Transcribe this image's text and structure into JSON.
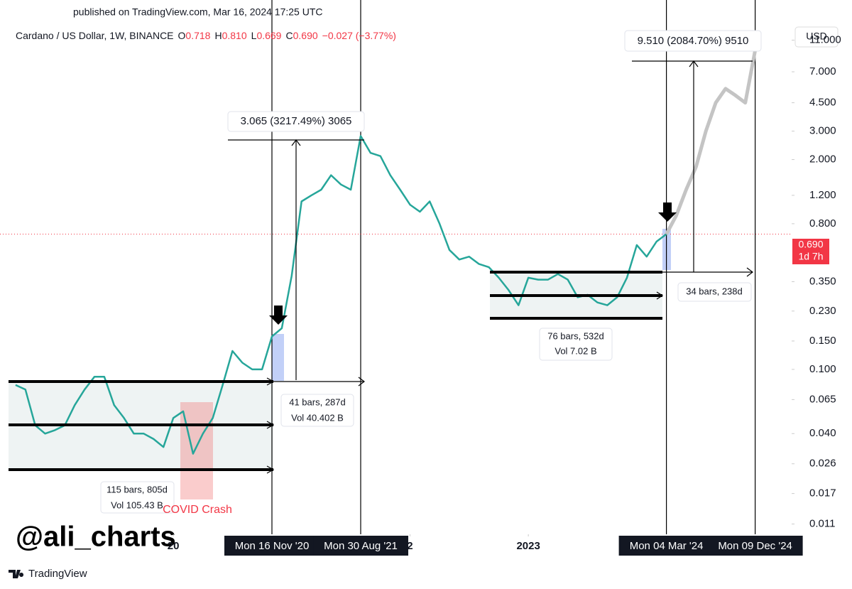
{
  "chart_data": {
    "type": "line",
    "published": "published on TradingView.com, Mar 16, 2024 17:25 UTC",
    "symbol": "Cardano / US Dollar, 1W, BINANCE",
    "ohlc": [
      {
        "key": "O",
        "value": 0.718,
        "label": "0.718"
      },
      {
        "key": "H",
        "value": 0.81,
        "label": "0.810"
      },
      {
        "key": "L",
        "value": 0.669,
        "label": "0.669"
      },
      {
        "key": "C",
        "value": 0.69,
        "label": "0.690"
      }
    ],
    "change": "−0.027 (−3.77%)",
    "currency": "USD",
    "log_scale": true,
    "x": [
      "2018-09",
      "2018-10",
      "2018-11",
      "2018-12",
      "2019-01",
      "2019-02",
      "2019-03",
      "2019-04",
      "2019-05",
      "2019-06",
      "2019-07",
      "2019-08",
      "2019-09",
      "2019-10",
      "2019-11",
      "2019-12",
      "2020-01",
      "2020-02",
      "2020-03",
      "2020-04",
      "2020-05",
      "2020-06",
      "2020-07",
      "2020-08",
      "2020-09",
      "2020-10",
      "2020-11",
      "2020-12",
      "2021-01",
      "2021-02",
      "2021-03",
      "2021-04",
      "2021-05",
      "2021-06",
      "2021-07",
      "2021-08",
      "2021-09",
      "2021-10",
      "2021-11",
      "2021-12",
      "2022-01",
      "2022-02",
      "2022-03",
      "2022-04",
      "2022-05",
      "2022-06",
      "2022-07",
      "2022-08",
      "2022-09",
      "2022-10",
      "2022-11",
      "2022-12",
      "2023-01",
      "2023-02",
      "2023-03",
      "2023-04",
      "2023-05",
      "2023-06",
      "2023-07",
      "2023-08",
      "2023-09",
      "2023-10",
      "2023-11",
      "2023-12",
      "2024-01",
      "2024-02",
      "2024-03",
      "2024-04",
      "2024-05",
      "2024-06",
      "2024-07",
      "2024-08",
      "2024-09",
      "2024-10",
      "2024-11",
      "2024-12"
    ],
    "series": [
      {
        "color": "#26a69a",
        "values": [
          0.08,
          0.075,
          0.045,
          0.04,
          0.042,
          0.045,
          0.06,
          0.075,
          0.09,
          0.09,
          0.06,
          0.05,
          0.04,
          0.04,
          0.037,
          0.033,
          0.05,
          0.055,
          0.03,
          0.04,
          0.05,
          0.08,
          0.13,
          0.11,
          0.1,
          0.1,
          0.16,
          0.18,
          0.38,
          1.1,
          1.2,
          1.3,
          1.6,
          1.4,
          1.3,
          2.8,
          2.2,
          2.1,
          1.6,
          1.3,
          1.05,
          0.95,
          1.1,
          0.8,
          0.55,
          0.48,
          0.5,
          0.45,
          0.43,
          0.37,
          0.31,
          0.25,
          0.37,
          0.36,
          0.36,
          0.39,
          0.36,
          0.28,
          0.29,
          0.26,
          0.25,
          0.28,
          0.37,
          0.59,
          0.5,
          0.62,
          0.69,
          null,
          null,
          null,
          null,
          null,
          null,
          null,
          null,
          null
        ]
      },
      {
        "color": "#c4c4c4",
        "values": [
          null,
          null,
          null,
          null,
          null,
          null,
          null,
          null,
          null,
          null,
          null,
          null,
          null,
          null,
          null,
          null,
          null,
          null,
          null,
          null,
          null,
          null,
          null,
          null,
          null,
          null,
          null,
          null,
          null,
          null,
          null,
          null,
          null,
          null,
          null,
          null,
          null,
          null,
          null,
          null,
          null,
          null,
          null,
          null,
          null,
          null,
          null,
          null,
          null,
          null,
          null,
          null,
          null,
          null,
          null,
          null,
          null,
          null,
          null,
          null,
          null,
          null,
          null,
          null,
          null,
          null,
          0.69,
          0.9,
          1.3,
          1.8,
          3.0,
          4.5,
          5.5,
          5.0,
          4.5,
          9.5
        ]
      }
    ],
    "ylim": [
      0.0095,
      13
    ],
    "yticks": [
      {
        "value": 11,
        "label": "11.000"
      },
      {
        "value": 7,
        "label": "7.000"
      },
      {
        "value": 4.5,
        "label": "4.500"
      },
      {
        "value": 3,
        "label": "3.000"
      },
      {
        "value": 2,
        "label": "2.000"
      },
      {
        "value": 1.2,
        "label": "1.200"
      },
      {
        "value": 0.8,
        "label": "0.800"
      },
      {
        "value": 0.35,
        "label": "0.350"
      },
      {
        "value": 0.23,
        "label": "0.230"
      },
      {
        "value": 0.15,
        "label": "0.150"
      },
      {
        "value": 0.1,
        "label": "0.100"
      },
      {
        "value": 0.065,
        "label": "0.065"
      },
      {
        "value": 0.04,
        "label": "0.040"
      },
      {
        "value": 0.026,
        "label": "0.026"
      },
      {
        "value": 0.017,
        "label": "0.017"
      },
      {
        "value": 0.011,
        "label": "0.011"
      }
    ],
    "xticks": [
      {
        "value": "2020-01",
        "label": "20"
      },
      {
        "value": "2020-11",
        "label": "Mon 16 Nov '20",
        "cursor": true
      },
      {
        "value": "2021-08",
        "label": "Mon 30 Aug '21",
        "cursor": true
      },
      {
        "value": "2022-01",
        "label": "2"
      },
      {
        "value": "2023-01",
        "label": "2023"
      },
      {
        "value": "2024-03",
        "label": "Mon 04 Mar '24",
        "cursor": true
      },
      {
        "value": "2024-12",
        "label": "Mon 09 Dec '24",
        "cursor": true
      }
    ],
    "last_price": {
      "value": 0.69,
      "label": "0.690"
    },
    "countdown": "1d 7h",
    "annotations": {
      "measure_top_1": "3.065 (3217.49%) 3065",
      "measure_top_2": "9.510 (2084.70%) 9510",
      "bars_1": "41 bars, 287d",
      "vol_1": "Vol 40.402 B",
      "bars_2": "76 bars, 532d",
      "vol_2": "Vol 7.02 B",
      "bars_3": "115 bars, 805d",
      "vol_3": "Vol 105.43 B",
      "bars_4": "34 bars, 238d",
      "covid": "COVID Crash"
    },
    "watermark": "@ali_charts",
    "brand": "TradingView"
  }
}
